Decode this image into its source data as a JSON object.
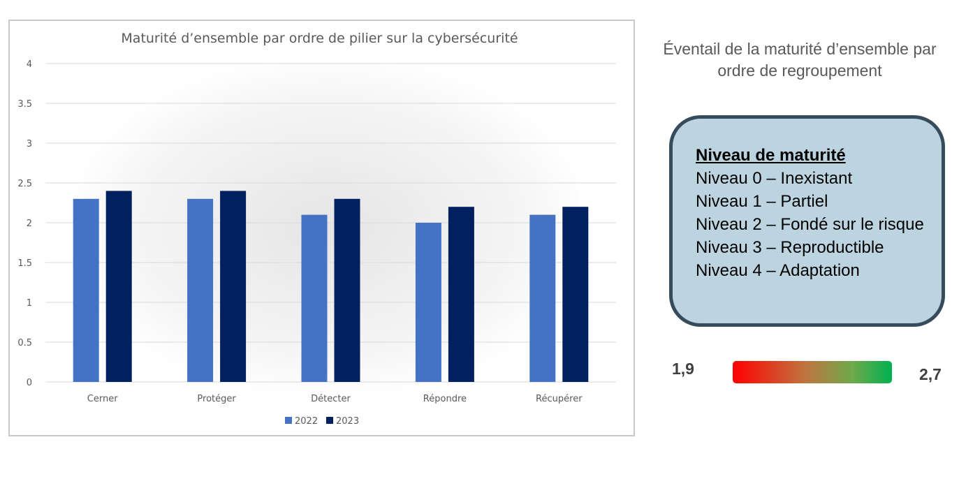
{
  "chart_data": {
    "type": "bar",
    "title": "Maturité d’ensemble par ordre de pilier sur la cybersécurité",
    "categories": [
      "Cerner",
      "Protéger",
      "Détecter",
      "Répondre",
      "Récupérer"
    ],
    "series": [
      {
        "name": "2022",
        "values": [
          2.3,
          2.3,
          2.1,
          2.0,
          2.1
        ],
        "color": "#4472c4"
      },
      {
        "name": "2023",
        "values": [
          2.4,
          2.4,
          2.3,
          2.2,
          2.2
        ],
        "color": "#002060"
      }
    ],
    "yticks": [
      "0",
      "0.5",
      "1",
      "1.5",
      "2",
      "2.5",
      "3",
      "3.5",
      "4"
    ],
    "ylim": [
      0,
      4
    ],
    "grid": true,
    "legend": "bottom"
  },
  "side_panel": {
    "title": "Éventail de la maturité d’ensemble par ordre de regroupement",
    "levels_box": {
      "heading": "Niveau de maturité",
      "items": [
        "Niveau 0 – Inexistant",
        "Niveau 1 – Partiel",
        "Niveau 2 – Fondé sur le risque",
        "Niveau 3 – Reproductible",
        "Niveau 4 – Adaptation"
      ]
    },
    "range": {
      "min_label": "1,9",
      "max_label": "2,7",
      "colors": [
        "#ff0000",
        "#00b050"
      ]
    }
  }
}
